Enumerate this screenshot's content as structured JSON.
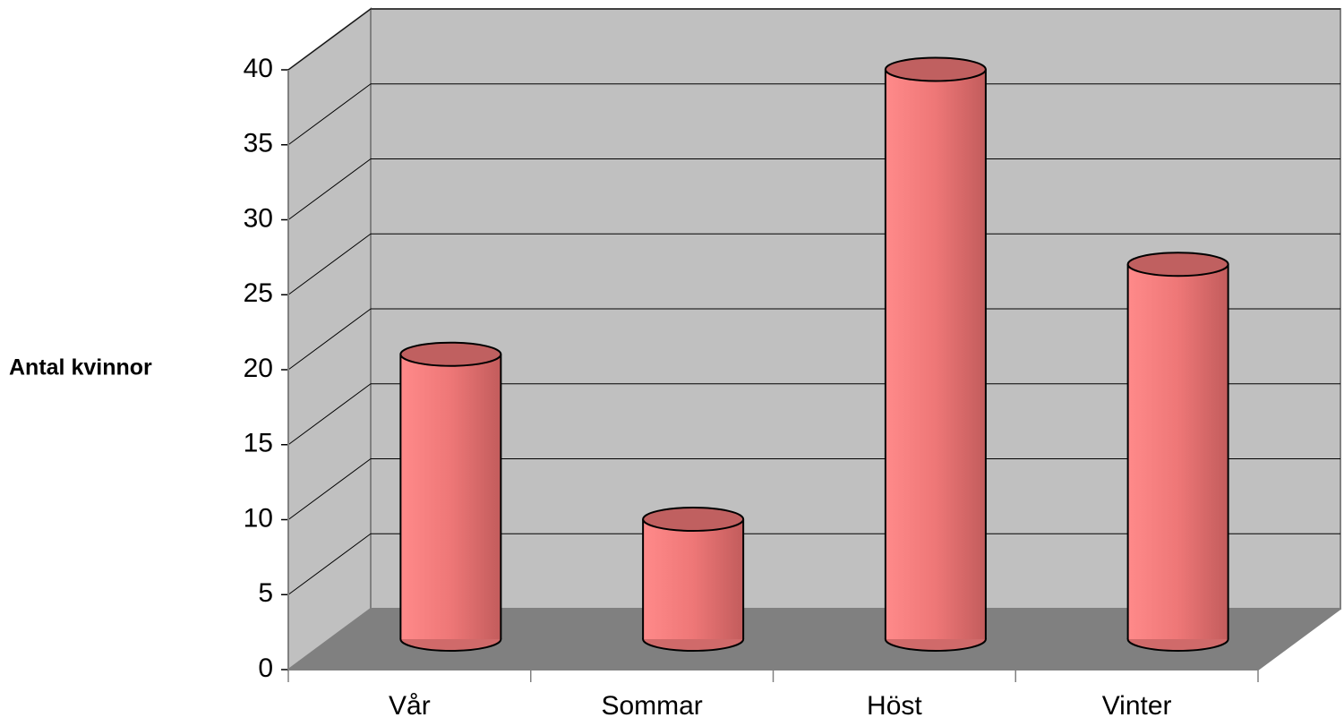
{
  "chart_data": {
    "type": "bar",
    "ylabel": "Antal kvinnor",
    "categories": [
      "Vår",
      "Sommar",
      "Höst",
      "Vinter"
    ],
    "values": [
      19,
      8,
      38,
      25
    ],
    "color": "#f08080",
    "ylim": [
      0,
      40
    ],
    "yticks": [
      0,
      5,
      10,
      15,
      20,
      25,
      30,
      35,
      40
    ],
    "grid": true
  }
}
